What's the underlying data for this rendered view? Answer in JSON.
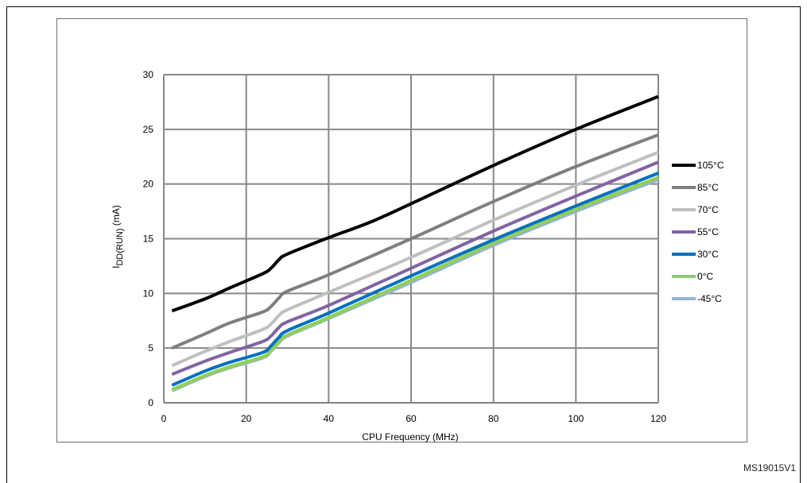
{
  "figure_id": "MS19015V1",
  "chart_data": {
    "type": "line",
    "title": "",
    "xlabel": "CPU Frequency (MHz)",
    "ylabel_main": "I",
    "ylabel_sub": "DD(RUN)",
    "ylabel_unit": " (mA)",
    "xlim": [
      0,
      120
    ],
    "ylim": [
      0,
      30
    ],
    "xticks": [
      0,
      20,
      40,
      60,
      80,
      100,
      120
    ],
    "yticks": [
      0,
      5,
      10,
      15,
      20,
      25,
      30
    ],
    "grid": true,
    "legend_position": "right",
    "series": [
      {
        "name": "105°C",
        "color": "#000000",
        "points": [
          [
            2,
            8.4
          ],
          [
            10,
            9.5
          ],
          [
            16,
            10.5
          ],
          [
            24,
            11.8
          ],
          [
            26,
            12.3
          ],
          [
            28,
            13.1
          ],
          [
            30,
            13.6
          ],
          [
            40,
            15.1
          ],
          [
            50,
            16.5
          ],
          [
            60,
            18.2
          ],
          [
            80,
            21.7
          ],
          [
            100,
            25.0
          ],
          [
            120,
            28.0
          ]
        ]
      },
      {
        "name": "85°C",
        "color": "#7f7f7f",
        "points": [
          [
            2,
            5.0
          ],
          [
            10,
            6.3
          ],
          [
            16,
            7.3
          ],
          [
            24,
            8.3
          ],
          [
            26,
            8.8
          ],
          [
            28,
            9.6
          ],
          [
            30,
            10.2
          ],
          [
            40,
            11.7
          ],
          [
            60,
            15.0
          ],
          [
            80,
            18.4
          ],
          [
            100,
            21.6
          ],
          [
            120,
            24.5
          ]
        ]
      },
      {
        "name": "70°C",
        "color": "#bfbfbf",
        "points": [
          [
            2,
            3.4
          ],
          [
            10,
            4.7
          ],
          [
            16,
            5.6
          ],
          [
            24,
            6.7
          ],
          [
            26,
            7.2
          ],
          [
            28,
            8.0
          ],
          [
            30,
            8.5
          ],
          [
            40,
            10.1
          ],
          [
            60,
            13.3
          ],
          [
            80,
            16.7
          ],
          [
            100,
            19.9
          ],
          [
            120,
            22.9
          ]
        ]
      },
      {
        "name": "55°C",
        "color": "#8064a2",
        "points": [
          [
            2,
            2.6
          ],
          [
            10,
            3.8
          ],
          [
            16,
            4.6
          ],
          [
            24,
            5.6
          ],
          [
            26,
            6.1
          ],
          [
            28,
            6.9
          ],
          [
            30,
            7.4
          ],
          [
            40,
            8.9
          ],
          [
            60,
            12.3
          ],
          [
            80,
            15.7
          ],
          [
            100,
            18.9
          ],
          [
            120,
            22.0
          ]
        ]
      },
      {
        "name": "30°C",
        "color": "#0070c0",
        "points": [
          [
            2,
            1.6
          ],
          [
            10,
            2.9
          ],
          [
            16,
            3.7
          ],
          [
            24,
            4.6
          ],
          [
            26,
            5.2
          ],
          [
            28,
            6.0
          ],
          [
            30,
            6.6
          ],
          [
            40,
            8.2
          ],
          [
            60,
            11.6
          ],
          [
            80,
            14.9
          ],
          [
            100,
            18.0
          ],
          [
            120,
            21.0
          ]
        ]
      },
      {
        "name": "0°C",
        "color": "#92d050",
        "points": [
          [
            2,
            1.2
          ],
          [
            10,
            2.5
          ],
          [
            16,
            3.3
          ],
          [
            24,
            4.2
          ],
          [
            26,
            4.8
          ],
          [
            28,
            5.6
          ],
          [
            30,
            6.2
          ],
          [
            40,
            7.8
          ],
          [
            60,
            11.2
          ],
          [
            80,
            14.6
          ],
          [
            100,
            17.7
          ],
          [
            120,
            20.6
          ]
        ]
      },
      {
        "name": "-45°C",
        "color": "#95b3d7",
        "points": [
          [
            2,
            1.1
          ],
          [
            10,
            2.4
          ],
          [
            16,
            3.2
          ],
          [
            24,
            4.1
          ],
          [
            26,
            4.7
          ],
          [
            28,
            5.5
          ],
          [
            30,
            6.1
          ],
          [
            40,
            7.7
          ],
          [
            60,
            11.0
          ],
          [
            80,
            14.4
          ],
          [
            100,
            17.5
          ],
          [
            120,
            20.4
          ]
        ]
      }
    ]
  }
}
